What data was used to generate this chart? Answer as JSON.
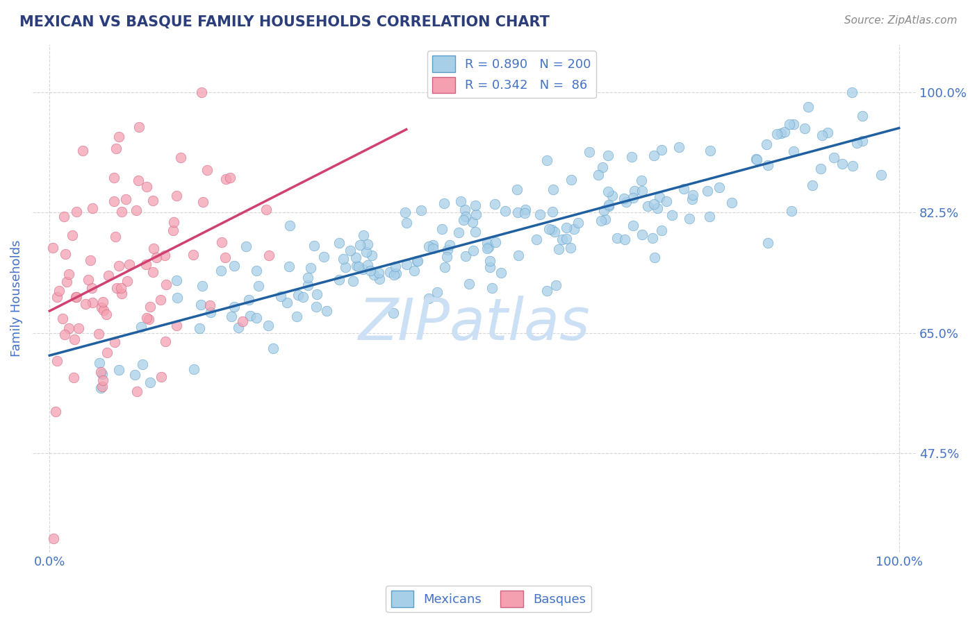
{
  "title": "MEXICAN VS BASQUE FAMILY HOUSEHOLDS CORRELATION CHART",
  "source_text": "Source: ZipAtlas.com",
  "ylabel": "Family Households",
  "y_tick_values": [
    0.475,
    0.65,
    0.825,
    1.0
  ],
  "xlim": [
    -0.02,
    1.02
  ],
  "ylim": [
    0.33,
    1.07
  ],
  "blue_dot_color": "#a8cfe8",
  "blue_dot_edge": "#5a9dc8",
  "blue_line_color": "#2060a0",
  "pink_dot_color": "#f4a0b0",
  "pink_dot_edge": "#d06080",
  "pink_line_color": "#d04070",
  "title_color": "#2c3e7a",
  "axis_color": "#4472C4",
  "watermark_color": "#cce0f5",
  "background_color": "#ffffff",
  "grid_color": "#cccccc",
  "legend_label_color": "#000000",
  "legend_value_color": "#4472C4",
  "mexican_R": 0.89,
  "basque_R": 0.342,
  "mexican_N": 200,
  "basque_N": 86,
  "figsize": [
    14.06,
    8.92
  ],
  "dpi": 100
}
